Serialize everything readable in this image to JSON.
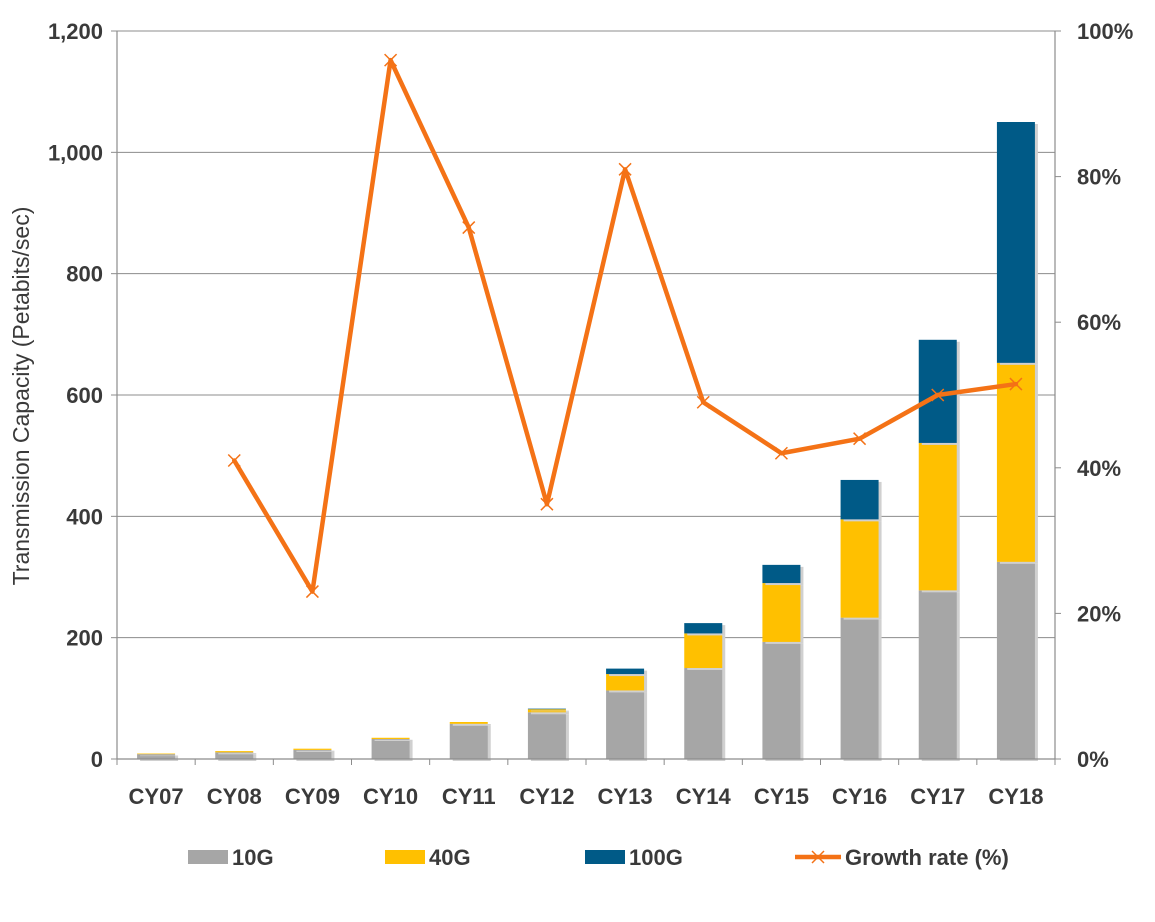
{
  "chart_data": {
    "type": "bar",
    "stacked": true,
    "categories": [
      "CY07",
      "CY08",
      "CY09",
      "CY10",
      "CY11",
      "CY12",
      "CY13",
      "CY14",
      "CY15",
      "CY16",
      "CY17",
      "CY18"
    ],
    "series": [
      {
        "name": "10G",
        "type": "bar",
        "axis": "left",
        "color": "#a6a6a6",
        "values": [
          8,
          11,
          15,
          33,
          58,
          77,
          113,
          150,
          193,
          233,
          278,
          325
        ]
      },
      {
        "name": "40G",
        "type": "bar",
        "axis": "left",
        "color": "#ffc000",
        "values": [
          1,
          2,
          2,
          2,
          3,
          5,
          27,
          57,
          97,
          162,
          243,
          328
        ]
      },
      {
        "name": "100G",
        "type": "bar",
        "axis": "left",
        "color": "#005a87",
        "values": [
          0,
          0,
          0,
          0,
          0,
          1,
          9,
          17,
          30,
          65,
          170,
          397
        ]
      },
      {
        "name": "Growth rate (%)",
        "type": "line",
        "axis": "right",
        "color": "#f47216",
        "values": [
          null,
          41,
          23,
          96,
          73,
          35,
          81,
          49,
          42,
          44,
          50,
          51.5
        ]
      }
    ],
    "ylabel": "Transmission Capacity (Petabits/sec)",
    "ylim": [
      0,
      1200
    ],
    "yticks": [
      "0",
      "200",
      "400",
      "600",
      "800",
      "1,000",
      "1,200"
    ],
    "y2lim": [
      0,
      100
    ],
    "y2ticks": [
      "0%",
      "20%",
      "40%",
      "60%",
      "80%",
      "100%"
    ],
    "grid": true,
    "legend": "bottom"
  }
}
